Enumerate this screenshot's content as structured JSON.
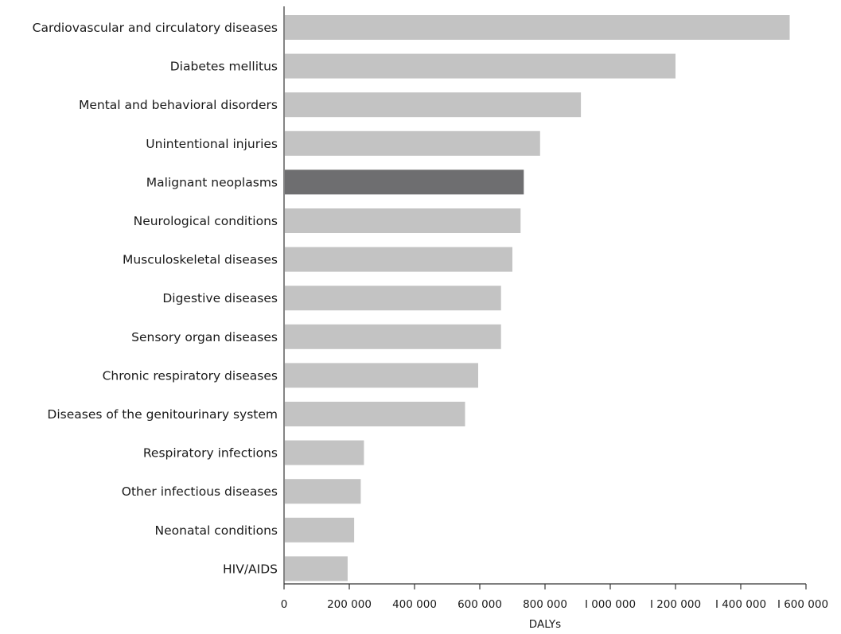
{
  "chart_data": {
    "type": "bar",
    "orientation": "horizontal",
    "xlabel": "DALYs",
    "ylabel": "",
    "xlim": [
      0,
      1600000
    ],
    "grid": false,
    "legend": "none",
    "categories": [
      "Cardiovascular and circulatory diseases",
      "Diabetes mellitus",
      "Mental and behavioral disorders",
      "Unintentional injuries",
      "Malignant neoplasms",
      "Neurological conditions",
      "Musculoskeletal diseases",
      "Digestive diseases",
      "Sensory organ diseases",
      "Chronic respiratory diseases",
      "Diseases of the genitourinary system",
      "Respiratory infections",
      "Other infectious diseases",
      "Neonatal conditions",
      "HIV/AIDS"
    ],
    "values": [
      1550000,
      1200000,
      910000,
      785000,
      735000,
      725000,
      700000,
      665000,
      665000,
      595000,
      555000,
      245000,
      235000,
      215000,
      195000
    ],
    "highlighted_category": "Malignant neoplasms",
    "colors": {
      "bar": "#c3c3c3",
      "highlight": "#6e6e70",
      "axis": "#333333"
    },
    "x_ticks": [
      0,
      200000,
      400000,
      600000,
      800000,
      1000000,
      1200000,
      1400000,
      1600000
    ],
    "x_tick_labels": [
      "0",
      "200 000",
      "400 000",
      "600 000",
      "800 000",
      "I 000 000",
      "I 200 000",
      "I 400 000",
      "I 600 000"
    ]
  }
}
